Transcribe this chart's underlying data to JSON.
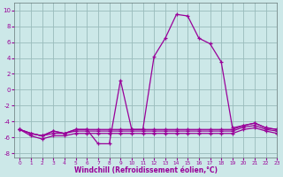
{
  "xlabel": "Windchill (Refroidissement éolien,°C)",
  "line_color": "#990099",
  "bg_color": "#cce8e8",
  "grid_color": "#99bbbb",
  "ylim": [
    -8.5,
    11
  ],
  "xlim": [
    -0.5,
    23
  ],
  "yticks": [
    -8,
    -6,
    -4,
    -2,
    0,
    2,
    4,
    6,
    8,
    10
  ],
  "xticks": [
    0,
    1,
    2,
    3,
    4,
    5,
    6,
    7,
    8,
    9,
    10,
    11,
    12,
    13,
    14,
    15,
    16,
    17,
    18,
    19,
    20,
    21,
    22,
    23
  ],
  "hours": [
    0,
    1,
    2,
    3,
    4,
    5,
    6,
    7,
    8,
    9,
    10,
    11,
    12,
    13,
    14,
    15,
    16,
    17,
    18,
    19,
    20,
    21,
    22,
    23
  ],
  "wc_main": [
    -5.0,
    -5.5,
    -5.8,
    -5.2,
    -5.5,
    -5.0,
    -5.0,
    -6.8,
    -6.8,
    1.2,
    -5.0,
    -5.0,
    4.2,
    6.5,
    9.5,
    9.3,
    6.5,
    5.8,
    3.5,
    -4.8,
    -4.5,
    -4.2,
    -4.8,
    -5.0
  ],
  "wc_flat1": [
    -5.0,
    -5.5,
    -5.8,
    -5.2,
    -5.5,
    -5.0,
    -5.0,
    -5.0,
    -5.0,
    -5.0,
    -5.0,
    -5.0,
    -5.0,
    -5.0,
    -5.0,
    -5.0,
    -5.0,
    -5.0,
    -5.0,
    -5.0,
    -4.5,
    -4.2,
    -4.8,
    -5.0
  ],
  "wc_flat2": [
    -5.0,
    -5.5,
    -5.8,
    -5.5,
    -5.5,
    -5.2,
    -5.2,
    -5.2,
    -5.2,
    -5.2,
    -5.2,
    -5.2,
    -5.2,
    -5.2,
    -5.2,
    -5.2,
    -5.2,
    -5.2,
    -5.2,
    -5.2,
    -4.7,
    -4.5,
    -5.0,
    -5.2
  ],
  "wc_flat3": [
    -5.0,
    -5.8,
    -6.2,
    -5.8,
    -5.8,
    -5.5,
    -5.5,
    -5.5,
    -5.5,
    -5.5,
    -5.5,
    -5.5,
    -5.5,
    -5.5,
    -5.5,
    -5.5,
    -5.5,
    -5.5,
    -5.5,
    -5.5,
    -5.0,
    -4.8,
    -5.2,
    -5.5
  ]
}
